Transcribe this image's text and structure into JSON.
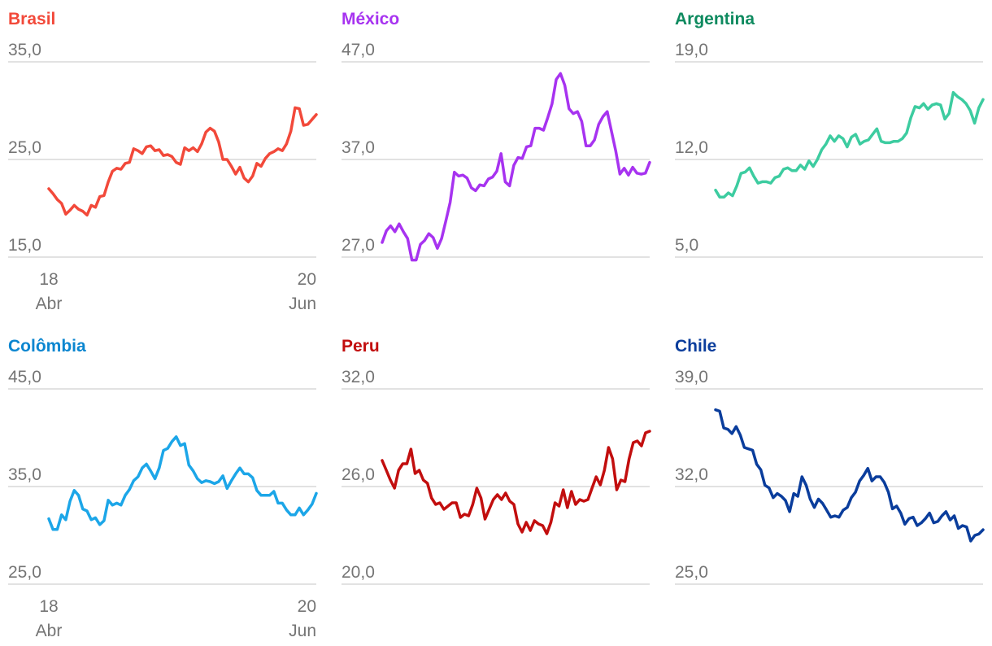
{
  "chart_data": [
    {
      "type": "line",
      "title": "Brasil",
      "color": "#f2493a",
      "ylim": [
        15.0,
        35.0
      ],
      "yticks": [
        "35,0",
        "25,0",
        "15,0"
      ],
      "x_labels": {
        "start": [
          "18",
          "Abr"
        ],
        "end": [
          "20",
          "Jun"
        ]
      },
      "values": [
        22.0,
        21.5,
        20.9,
        20.5,
        19.4,
        19.8,
        20.3,
        19.9,
        19.7,
        19.3,
        20.3,
        20.1,
        21.2,
        21.3,
        22.7,
        23.8,
        24.1,
        24.0,
        24.6,
        24.7,
        26.1,
        25.9,
        25.6,
        26.3,
        26.4,
        25.9,
        26.0,
        25.4,
        25.5,
        25.3,
        24.7,
        24.5,
        26.2,
        25.9,
        26.2,
        25.8,
        26.6,
        27.8,
        28.2,
        27.9,
        26.8,
        25.0,
        25.0,
        24.3,
        23.5,
        24.2,
        23.1,
        22.7,
        23.3,
        24.6,
        24.3,
        25.1,
        25.6,
        25.8,
        26.1,
        25.9,
        26.6,
        27.9,
        30.3,
        30.2,
        28.5,
        28.6,
        29.1,
        29.6
      ]
    },
    {
      "type": "line",
      "title": "México",
      "color": "#a733f0",
      "ylim": [
        27.0,
        47.0
      ],
      "yticks": [
        "47,0",
        "37,0",
        "27,0"
      ],
      "values": [
        28.5,
        29.7,
        30.2,
        29.6,
        30.4,
        29.6,
        28.9,
        26.7,
        26.7,
        28.3,
        28.7,
        29.4,
        29.0,
        27.9,
        28.9,
        30.7,
        32.6,
        35.7,
        35.3,
        35.4,
        35.1,
        34.1,
        33.8,
        34.4,
        34.3,
        35.0,
        35.2,
        35.8,
        37.6,
        34.7,
        34.3,
        36.4,
        37.2,
        37.1,
        38.3,
        38.4,
        40.2,
        40.2,
        40.0,
        41.3,
        42.7,
        45.2,
        45.8,
        44.6,
        42.2,
        41.7,
        41.9,
        40.9,
        38.4,
        38.4,
        39.0,
        40.6,
        41.4,
        41.9,
        39.9,
        37.9,
        35.5,
        36.1,
        35.4,
        36.2,
        35.6,
        35.5,
        35.6,
        36.7
      ]
    },
    {
      "type": "line",
      "title": "Argentina",
      "color": "#3dcca0",
      "ylim": [
        5.0,
        19.0
      ],
      "yticks": [
        "19,0",
        "12,0",
        "5,0"
      ],
      "values": [
        9.8,
        9.3,
        9.3,
        9.6,
        9.4,
        10.1,
        11.0,
        11.1,
        11.4,
        10.8,
        10.3,
        10.4,
        10.4,
        10.3,
        10.7,
        10.8,
        11.3,
        11.4,
        11.2,
        11.2,
        11.6,
        11.3,
        11.9,
        11.5,
        12.0,
        12.7,
        13.1,
        13.7,
        13.3,
        13.7,
        13.5,
        12.9,
        13.6,
        13.8,
        13.1,
        13.3,
        13.4,
        13.8,
        14.2,
        13.3,
        13.2,
        13.2,
        13.3,
        13.3,
        13.5,
        13.9,
        15.0,
        15.8,
        15.7,
        16.0,
        15.6,
        15.9,
        16.0,
        15.9,
        14.9,
        15.3,
        16.8,
        16.5,
        16.3,
        16.0,
        15.5,
        14.6,
        15.7,
        16.3
      ]
    },
    {
      "type": "line",
      "title": "Colômbia",
      "color": "#1ca6e8",
      "ylim": [
        25.0,
        45.0
      ],
      "yticks": [
        "45,0",
        "35,0",
        "25,0"
      ],
      "x_labels": {
        "start": [
          "18",
          "Abr"
        ],
        "end": [
          "20",
          "Jun"
        ]
      },
      "values": [
        31.7,
        30.6,
        30.6,
        32.1,
        31.6,
        33.5,
        34.6,
        34.1,
        32.7,
        32.5,
        31.6,
        31.8,
        31.1,
        31.5,
        33.6,
        33.1,
        33.3,
        33.1,
        34.1,
        34.7,
        35.6,
        36.0,
        36.9,
        37.3,
        36.6,
        35.8,
        36.9,
        38.7,
        38.9,
        39.6,
        40.1,
        39.2,
        39.4,
        37.2,
        36.6,
        35.8,
        35.4,
        35.6,
        35.5,
        35.3,
        35.5,
        36.1,
        34.8,
        35.6,
        36.3,
        36.9,
        36.3,
        36.3,
        35.9,
        34.6,
        34.1,
        34.1,
        34.1,
        34.5,
        33.3,
        33.3,
        32.6,
        32.1,
        32.1,
        32.8,
        32.1,
        32.6,
        33.2,
        34.3
      ]
    },
    {
      "type": "line",
      "title": "Peru",
      "color": "#c20e0e",
      "ylim": [
        20.0,
        32.0
      ],
      "yticks": [
        "32,0",
        "26,0",
        "20,0"
      ],
      "values": [
        27.6,
        27.0,
        26.4,
        25.9,
        27.0,
        27.4,
        27.4,
        28.3,
        26.8,
        27.0,
        26.4,
        26.2,
        25.3,
        24.9,
        25.0,
        24.6,
        24.8,
        25.0,
        25.0,
        24.1,
        24.3,
        24.2,
        24.9,
        25.9,
        25.3,
        24.0,
        24.6,
        25.2,
        25.5,
        25.2,
        25.6,
        25.1,
        24.9,
        23.7,
        23.2,
        23.8,
        23.3,
        23.9,
        23.7,
        23.6,
        23.1,
        23.8,
        25.0,
        24.8,
        25.8,
        24.7,
        25.7,
        24.9,
        25.2,
        25.1,
        25.2,
        25.9,
        26.6,
        26.1,
        27.0,
        28.4,
        27.7,
        25.8,
        26.4,
        26.3,
        27.7,
        28.7,
        28.8,
        28.5,
        29.3,
        29.4
      ]
    },
    {
      "type": "line",
      "title": "Chile",
      "color": "#0a3d9c",
      "ylim": [
        25.0,
        39.0
      ],
      "yticks": [
        "39,0",
        "32,0",
        "25,0"
      ],
      "values": [
        37.5,
        37.4,
        36.2,
        36.1,
        35.8,
        36.3,
        35.7,
        34.8,
        34.7,
        34.6,
        33.6,
        33.2,
        32.1,
        31.9,
        31.2,
        31.5,
        31.3,
        31.0,
        30.2,
        31.5,
        31.3,
        32.7,
        32.1,
        31.1,
        30.5,
        31.1,
        30.8,
        30.3,
        29.8,
        29.9,
        29.8,
        30.3,
        30.5,
        31.2,
        31.6,
        32.4,
        32.8,
        33.3,
        32.4,
        32.7,
        32.7,
        32.3,
        31.6,
        30.4,
        30.6,
        30.1,
        29.3,
        29.7,
        29.8,
        29.2,
        29.4,
        29.7,
        30.1,
        29.4,
        29.5,
        29.9,
        30.2,
        29.6,
        29.9,
        29.0,
        29.2,
        29.1,
        28.1,
        28.5,
        28.6,
        28.9
      ]
    }
  ]
}
